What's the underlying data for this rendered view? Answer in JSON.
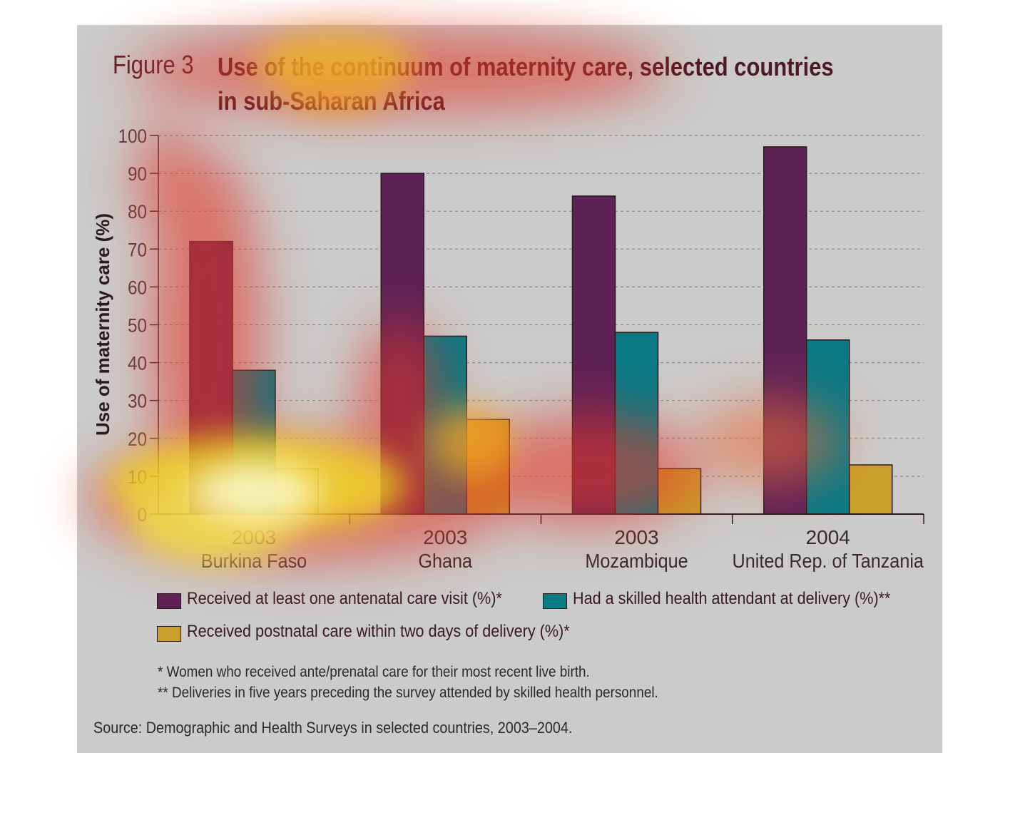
{
  "figure": {
    "label": "Figure 3",
    "title_line1": "Use of the continuum of maternity care, selected countries",
    "title_line2": "in sub-Saharan Africa"
  },
  "chart_data": {
    "type": "bar",
    "ylabel": "Use of maternity care (%)",
    "ylim": [
      0,
      100
    ],
    "yticks": [
      0,
      10,
      20,
      30,
      40,
      50,
      60,
      70,
      80,
      90,
      100
    ],
    "grid": true,
    "categories": [
      {
        "year": "2003",
        "country": "Burkina Faso"
      },
      {
        "year": "2003",
        "country": "Ghana"
      },
      {
        "year": "2003",
        "country": "Mozambique"
      },
      {
        "year": "2004",
        "country": "United Rep. of Tanzania"
      }
    ],
    "series": [
      {
        "name": "Received at least one antenatal care visit (%)*",
        "color": "#5e2257",
        "values": [
          72,
          90,
          84,
          97
        ]
      },
      {
        "name": "Had a skilled health attendant at delivery (%)**",
        "color": "#0a7a85",
        "values": [
          38,
          47,
          48,
          46
        ]
      },
      {
        "name": "Received postnatal care within two days of delivery (%)*",
        "color": "#c9a02a",
        "values": [
          12,
          25,
          12,
          13
        ]
      }
    ],
    "legend_position": "bottom"
  },
  "notes": [
    "* Women who received ante/prenatal care for their most recent live birth.",
    "** Deliveries in five years preceding the survey attended by skilled health personnel."
  ],
  "source": "Source: Demographic and Health Surveys in selected countries, 2003–2004."
}
